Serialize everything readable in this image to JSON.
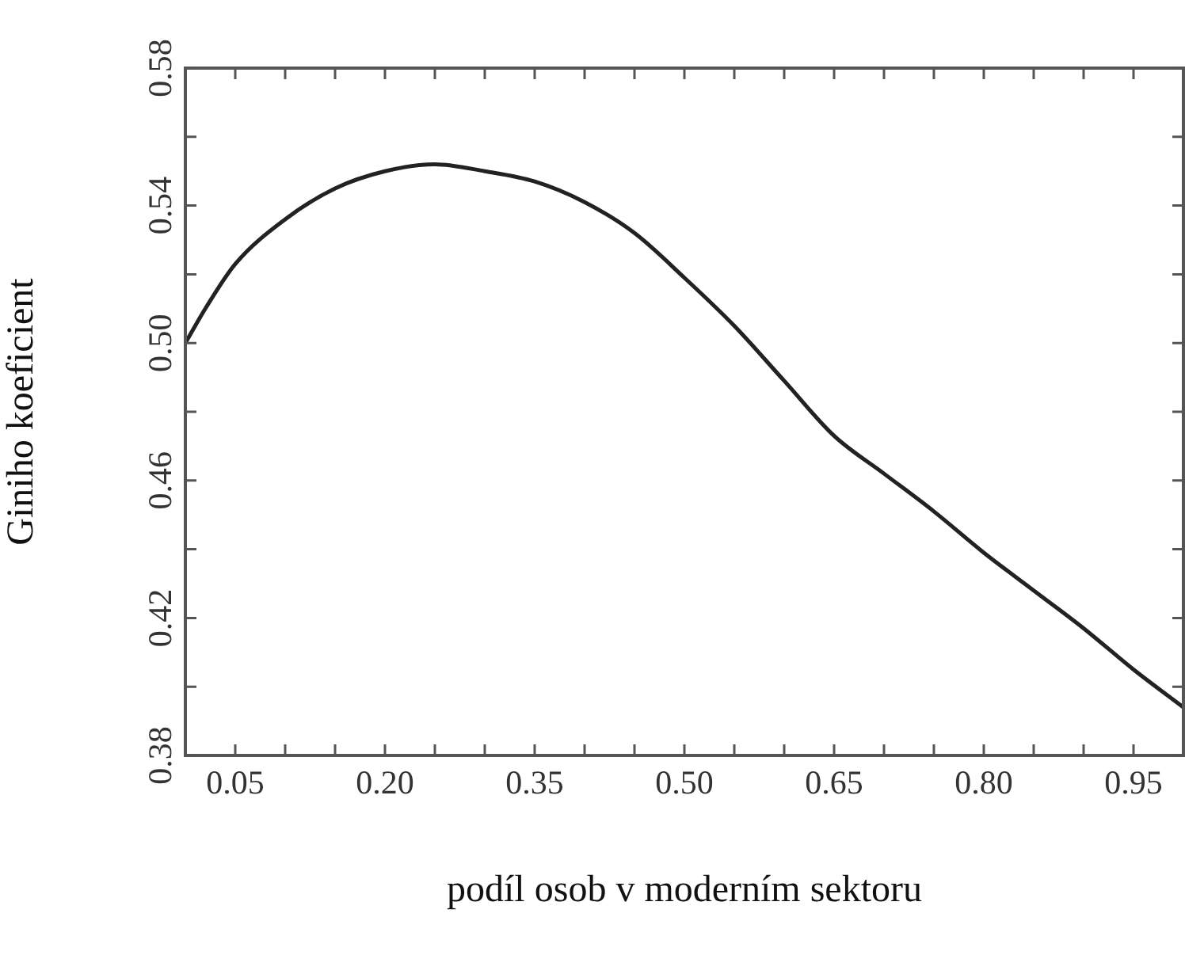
{
  "chart_data": {
    "type": "line",
    "xlabel": "podíl osob v moderním sektoru",
    "ylabel": "Giniho koeficient",
    "x": [
      0,
      0.02,
      0.05,
      0.1,
      0.15,
      0.2,
      0.25,
      0.3,
      0.35,
      0.4,
      0.45,
      0.5,
      0.55,
      0.6,
      0.65,
      0.7,
      0.75,
      0.8,
      0.85,
      0.9,
      0.95,
      1
    ],
    "series": [
      {
        "color": "#222222",
        "values": [
          0.5,
          0.51,
          0.523,
          0.536,
          0.545,
          0.55,
          0.552,
          0.55,
          0.547,
          0.541,
          0.532,
          0.519,
          0.505,
          0.489,
          0.473,
          0.462,
          0.451,
          0.439,
          0.428,
          0.417,
          0.405,
          0.394
        ]
      }
    ],
    "xlim": [
      0,
      1
    ],
    "xticks": [
      {
        "value": 0.05,
        "label": "0.05"
      },
      {
        "value": 0.1,
        "label": null
      },
      {
        "value": 0.15,
        "label": null
      },
      {
        "value": 0.2,
        "label": "0.20"
      },
      {
        "value": 0.25,
        "label": null
      },
      {
        "value": 0.3,
        "label": null
      },
      {
        "value": 0.35,
        "label": "0.35"
      },
      {
        "value": 0.4,
        "label": null
      },
      {
        "value": 0.45,
        "label": null
      },
      {
        "value": 0.5,
        "label": "0.50"
      },
      {
        "value": 0.55,
        "label": null
      },
      {
        "value": 0.6,
        "label": null
      },
      {
        "value": 0.65,
        "label": "0.65"
      },
      {
        "value": 0.7,
        "label": null
      },
      {
        "value": 0.75,
        "label": null
      },
      {
        "value": 0.8,
        "label": "0.80"
      },
      {
        "value": 0.85,
        "label": null
      },
      {
        "value": 0.9,
        "label": null
      },
      {
        "value": 0.95,
        "label": "0.95"
      }
    ],
    "ylim": [
      0.38,
      0.58
    ],
    "yticks": [
      {
        "value": 0.38,
        "label": "0.38"
      },
      {
        "value": 0.4,
        "label": null
      },
      {
        "value": 0.42,
        "label": "0.42"
      },
      {
        "value": 0.44,
        "label": null
      },
      {
        "value": 0.46,
        "label": "0.46"
      },
      {
        "value": 0.48,
        "label": null
      },
      {
        "value": 0.5,
        "label": "0.50"
      },
      {
        "value": 0.52,
        "label": null
      },
      {
        "value": 0.54,
        "label": "0.54"
      },
      {
        "value": 0.56,
        "label": null
      },
      {
        "value": 0.58,
        "label": "0.58"
      }
    ],
    "grid": false,
    "legend": false,
    "marker": "none",
    "line_style": "solid"
  }
}
